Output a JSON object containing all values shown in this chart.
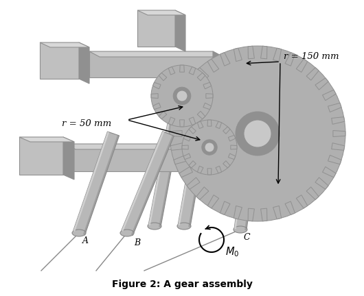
{
  "title": "Figure 2: A gear assembly",
  "title_fontsize": 10,
  "bg_color": "#ffffff",
  "gear_color_light": "#c8c8c8",
  "gear_color_mid": "#b0b0b0",
  "gear_color_dark": "#909090",
  "shaft_color_light": "#d8d8d8",
  "shaft_color_mid": "#b8b8b8",
  "shaft_color_dark": "#888888",
  "bar_color_light": "#d0d0d0",
  "bar_color_mid": "#b8b8b8",
  "bar_color_dark": "#909090",
  "wall_color_light": "#d8d8d8",
  "wall_color_mid": "#c0c0c0",
  "wall_color_dark": "#909090",
  "text_color": "#000000",
  "label_r50": "r = 50 mm",
  "label_r150": "r = 150 mm",
  "label_A": "A",
  "label_B": "B",
  "label_C": "C"
}
